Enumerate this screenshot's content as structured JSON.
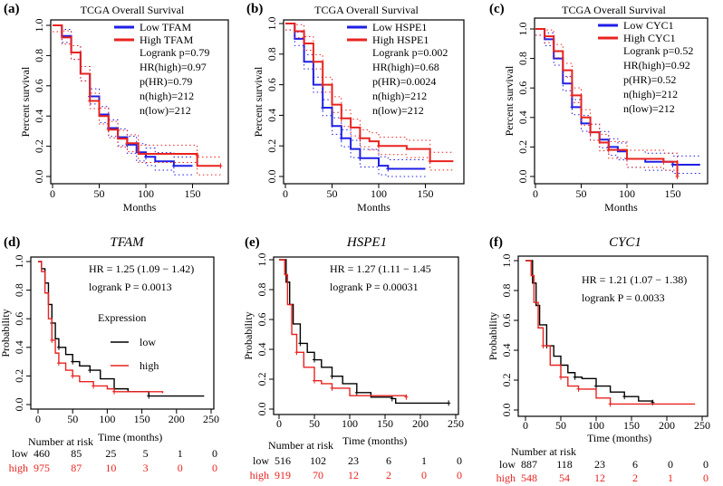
{
  "colors": {
    "low_top": "#1f1fe6",
    "high": "#e8231f",
    "low_bottom": "#000000"
  },
  "chart_data": [
    {
      "panel": "(a)",
      "type": "line",
      "title": "TCGA Overall Survival",
      "xlabel": "Months",
      "ylabel": "Percent survival",
      "xticks": [
        "0",
        "50",
        "100",
        "150"
      ],
      "yticks": [
        "0.0",
        "0.2",
        "0.4",
        "0.6",
        "0.8",
        "1.0"
      ],
      "xlim": [
        0,
        185
      ],
      "ylim": [
        0,
        1
      ],
      "legend": [
        "Low TFAM",
        "High TFAM"
      ],
      "stats": [
        "Logrank p=0.79",
        "HR(high)=0.97",
        "p(HR)=0.79",
        "n(high)=212",
        "n(low)=212"
      ],
      "series": [
        {
          "name": "Low TFAM",
          "color": "#1f1fe6",
          "points": [
            [
              0,
              1
            ],
            [
              10,
              0.93
            ],
            [
              20,
              0.82
            ],
            [
              30,
              0.68
            ],
            [
              40,
              0.53
            ],
            [
              50,
              0.41
            ],
            [
              60,
              0.32
            ],
            [
              70,
              0.26
            ],
            [
              80,
              0.21
            ],
            [
              90,
              0.16
            ],
            [
              100,
              0.13
            ],
            [
              110,
              0.1
            ],
            [
              130,
              0.07
            ],
            [
              150,
              0.07
            ]
          ]
        },
        {
          "name": "High TFAM",
          "color": "#e8231f",
          "points": [
            [
              0,
              1
            ],
            [
              10,
              0.92
            ],
            [
              20,
              0.82
            ],
            [
              30,
              0.68
            ],
            [
              40,
              0.5
            ],
            [
              50,
              0.4
            ],
            [
              60,
              0.31
            ],
            [
              70,
              0.25
            ],
            [
              80,
              0.22
            ],
            [
              92,
              0.15
            ],
            [
              155,
              0.14
            ],
            [
              155,
              0.07
            ],
            [
              180,
              0.07
            ]
          ]
        }
      ]
    },
    {
      "panel": "(b)",
      "type": "line",
      "title": "TCGA Overall Survival",
      "xlabel": "Months",
      "ylabel": "Percent survival",
      "xticks": [
        "0",
        "50",
        "100",
        "150"
      ],
      "yticks": [
        "0.0",
        "0.2",
        "0.4",
        "0.6",
        "0.8",
        "1.0"
      ],
      "xlim": [
        0,
        185
      ],
      "ylim": [
        0,
        1
      ],
      "legend": [
        "Low HSPE1",
        "High HSPE1"
      ],
      "stats": [
        "Logrank p=0.002",
        "HR(high)=0.68",
        "p(HR)=0.0024",
        "n(high)=212",
        "n(low)=212"
      ],
      "series": [
        {
          "name": "Low HSPE1",
          "color": "#1f1fe6",
          "points": [
            [
              0,
              1
            ],
            [
              10,
              0.9
            ],
            [
              20,
              0.75
            ],
            [
              30,
              0.6
            ],
            [
              40,
              0.45
            ],
            [
              50,
              0.33
            ],
            [
              60,
              0.25
            ],
            [
              70,
              0.18
            ],
            [
              80,
              0.12
            ],
            [
              100,
              0.07
            ],
            [
              110,
              0.05
            ],
            [
              150,
              0.05
            ]
          ]
        },
        {
          "name": "High HSPE1",
          "color": "#e8231f",
          "points": [
            [
              0,
              1
            ],
            [
              10,
              0.95
            ],
            [
              20,
              0.87
            ],
            [
              30,
              0.75
            ],
            [
              40,
              0.6
            ],
            [
              50,
              0.47
            ],
            [
              60,
              0.38
            ],
            [
              70,
              0.32
            ],
            [
              80,
              0.25
            ],
            [
              90,
              0.23
            ],
            [
              100,
              0.2
            ],
            [
              130,
              0.18
            ],
            [
              155,
              0.1
            ],
            [
              180,
              0.1
            ]
          ]
        }
      ]
    },
    {
      "panel": "(c)",
      "type": "line",
      "title": "TCGA Overall Survival",
      "xlabel": "Months",
      "ylabel": "Percent survival",
      "xticks": [
        "0",
        "50",
        "100",
        "150"
      ],
      "yticks": [
        "0.0",
        "0.2",
        "0.4",
        "0.6",
        "0.8",
        "1.0"
      ],
      "xlim": [
        0,
        185
      ],
      "ylim": [
        0,
        1
      ],
      "legend": [
        "Low CYC1",
        "High CYC1"
      ],
      "stats": [
        "Logrank p=0.52",
        "HR(high)=0.92",
        "p(HR)=0.52",
        "n(high)=212",
        "n(low)=212"
      ],
      "series": [
        {
          "name": "Low CYC1",
          "color": "#1f1fe6",
          "points": [
            [
              0,
              1
            ],
            [
              10,
              0.93
            ],
            [
              20,
              0.8
            ],
            [
              30,
              0.63
            ],
            [
              40,
              0.47
            ],
            [
              50,
              0.36
            ],
            [
              60,
              0.3
            ],
            [
              70,
              0.25
            ],
            [
              80,
              0.2
            ],
            [
              90,
              0.17
            ],
            [
              100,
              0.12
            ],
            [
              120,
              0.1
            ],
            [
              150,
              0.08
            ],
            [
              180,
              0.08
            ]
          ]
        },
        {
          "name": "High CYC1",
          "color": "#e8231f",
          "points": [
            [
              0,
              1
            ],
            [
              10,
              0.95
            ],
            [
              20,
              0.85
            ],
            [
              30,
              0.72
            ],
            [
              40,
              0.55
            ],
            [
              50,
              0.4
            ],
            [
              60,
              0.3
            ],
            [
              70,
              0.23
            ],
            [
              80,
              0.18
            ],
            [
              100,
              0.12
            ],
            [
              140,
              0.1
            ],
            [
              155,
              0.1
            ],
            [
              155,
              0
            ]
          ]
        }
      ]
    },
    {
      "panel": "(d)",
      "type": "line",
      "title": "TFAM",
      "xlabel": "Time (months)",
      "ylabel": "Probability",
      "xticks": [
        "0",
        "50",
        "100",
        "150",
        "200",
        "250"
      ],
      "yticks": [
        "0.0",
        "0.2",
        "0.4",
        "0.6",
        "0.8",
        "1.0"
      ],
      "xlim": [
        0,
        250
      ],
      "ylim": [
        0,
        1
      ],
      "stats": [
        "HR = 1.25 (1.09 − 1.42)",
        "logrank P = 0.0013"
      ],
      "legend_title": "Expression",
      "legend": [
        "low",
        "high"
      ],
      "risk": {
        "title": "Number at risk",
        "low": [
          "low",
          "460",
          "85",
          "25",
          "5",
          "1",
          "0"
        ],
        "high": [
          "high",
          "975",
          "87",
          "10",
          "3",
          "0",
          "0"
        ]
      },
      "series": [
        {
          "name": "low",
          "color": "#000000",
          "points": [
            [
              0,
              1
            ],
            [
              5,
              0.95
            ],
            [
              10,
              0.85
            ],
            [
              15,
              0.7
            ],
            [
              20,
              0.57
            ],
            [
              25,
              0.46
            ],
            [
              30,
              0.4
            ],
            [
              40,
              0.35
            ],
            [
              50,
              0.3
            ],
            [
              60,
              0.27
            ],
            [
              75,
              0.24
            ],
            [
              90,
              0.18
            ],
            [
              110,
              0.11
            ],
            [
              130,
              0.09
            ],
            [
              160,
              0.06
            ],
            [
              240,
              0.06
            ]
          ]
        },
        {
          "name": "high",
          "color": "#e8231f",
          "points": [
            [
              0,
              1
            ],
            [
              5,
              0.93
            ],
            [
              10,
              0.78
            ],
            [
              15,
              0.6
            ],
            [
              20,
              0.45
            ],
            [
              25,
              0.36
            ],
            [
              30,
              0.29
            ],
            [
              40,
              0.24
            ],
            [
              50,
              0.2
            ],
            [
              60,
              0.16
            ],
            [
              80,
              0.13
            ],
            [
              100,
              0.11
            ],
            [
              110,
              0.09
            ],
            [
              180,
              0.08
            ]
          ]
        }
      ]
    },
    {
      "panel": "(e)",
      "type": "line",
      "title": "HSPE1",
      "xlabel": "Time (months)",
      "ylabel": "Probability",
      "xticks": [
        "0",
        "50",
        "100",
        "150",
        "200",
        "250"
      ],
      "yticks": [
        "0.0",
        "0.2",
        "0.4",
        "0.6",
        "0.8",
        "1.0"
      ],
      "xlim": [
        0,
        250
      ],
      "ylim": [
        0,
        1
      ],
      "stats": [
        "HR = 1.27 (1.11 − 1.45",
        "logrank P = 0.00031"
      ],
      "risk": {
        "title": "Number at risk",
        "low": [
          "low",
          "516",
          "102",
          "23",
          "6",
          "1",
          "0"
        ],
        "high": [
          "high",
          "919",
          "70",
          "12",
          "2",
          "0",
          "0"
        ]
      },
      "series": [
        {
          "name": "low",
          "color": "#000000",
          "points": [
            [
              0,
              1
            ],
            [
              10,
              0.85
            ],
            [
              15,
              0.7
            ],
            [
              20,
              0.57
            ],
            [
              30,
              0.44
            ],
            [
              40,
              0.38
            ],
            [
              50,
              0.33
            ],
            [
              60,
              0.28
            ],
            [
              75,
              0.22
            ],
            [
              90,
              0.17
            ],
            [
              110,
              0.11
            ],
            [
              130,
              0.08
            ],
            [
              160,
              0.07
            ],
            [
              165,
              0.04
            ],
            [
              240,
              0.04
            ]
          ]
        },
        {
          "name": "high",
          "color": "#e8231f",
          "points": [
            [
              0,
              1
            ],
            [
              8,
              0.9
            ],
            [
              12,
              0.7
            ],
            [
              18,
              0.5
            ],
            [
              25,
              0.38
            ],
            [
              35,
              0.28
            ],
            [
              50,
              0.19
            ],
            [
              60,
              0.17
            ],
            [
              75,
              0.14
            ],
            [
              100,
              0.09
            ],
            [
              180,
              0.08
            ]
          ]
        }
      ]
    },
    {
      "panel": "(f)",
      "type": "line",
      "title": "CYC1",
      "xlabel": "Time (months)",
      "ylabel": "Probability",
      "xticks": [
        "0",
        "50",
        "100",
        "150",
        "200",
        "250"
      ],
      "yticks": [
        "0.0",
        "0.2",
        "0.4",
        "0.6",
        "0.8",
        "1.0"
      ],
      "xlim": [
        0,
        250
      ],
      "ylim": [
        0,
        1
      ],
      "stats": [
        "HR = 1.21 (1.07 − 1.38)",
        "logrank P = 0.0033"
      ],
      "risk": {
        "title": "Number at risk",
        "low": [
          "low",
          "887",
          "118",
          "23",
          "6",
          "0",
          "0"
        ],
        "high": [
          "high",
          "548",
          "54",
          "12",
          "2",
          "1",
          "0"
        ]
      },
      "series": [
        {
          "name": "low",
          "color": "#000000",
          "points": [
            [
              0,
              1
            ],
            [
              10,
              0.85
            ],
            [
              15,
              0.7
            ],
            [
              20,
              0.57
            ],
            [
              30,
              0.43
            ],
            [
              40,
              0.36
            ],
            [
              50,
              0.3
            ],
            [
              60,
              0.25
            ],
            [
              70,
              0.22
            ],
            [
              80,
              0.21
            ],
            [
              100,
              0.16
            ],
            [
              120,
              0.12
            ],
            [
              140,
              0.09
            ],
            [
              160,
              0.06
            ],
            [
              180,
              0.05
            ]
          ]
        },
        {
          "name": "high",
          "color": "#e8231f",
          "points": [
            [
              0,
              1
            ],
            [
              8,
              0.9
            ],
            [
              12,
              0.72
            ],
            [
              18,
              0.55
            ],
            [
              25,
              0.43
            ],
            [
              35,
              0.3
            ],
            [
              50,
              0.22
            ],
            [
              60,
              0.16
            ],
            [
              75,
              0.14
            ],
            [
              100,
              0.08
            ],
            [
              120,
              0.04
            ],
            [
              240,
              0.04
            ]
          ]
        }
      ]
    }
  ]
}
